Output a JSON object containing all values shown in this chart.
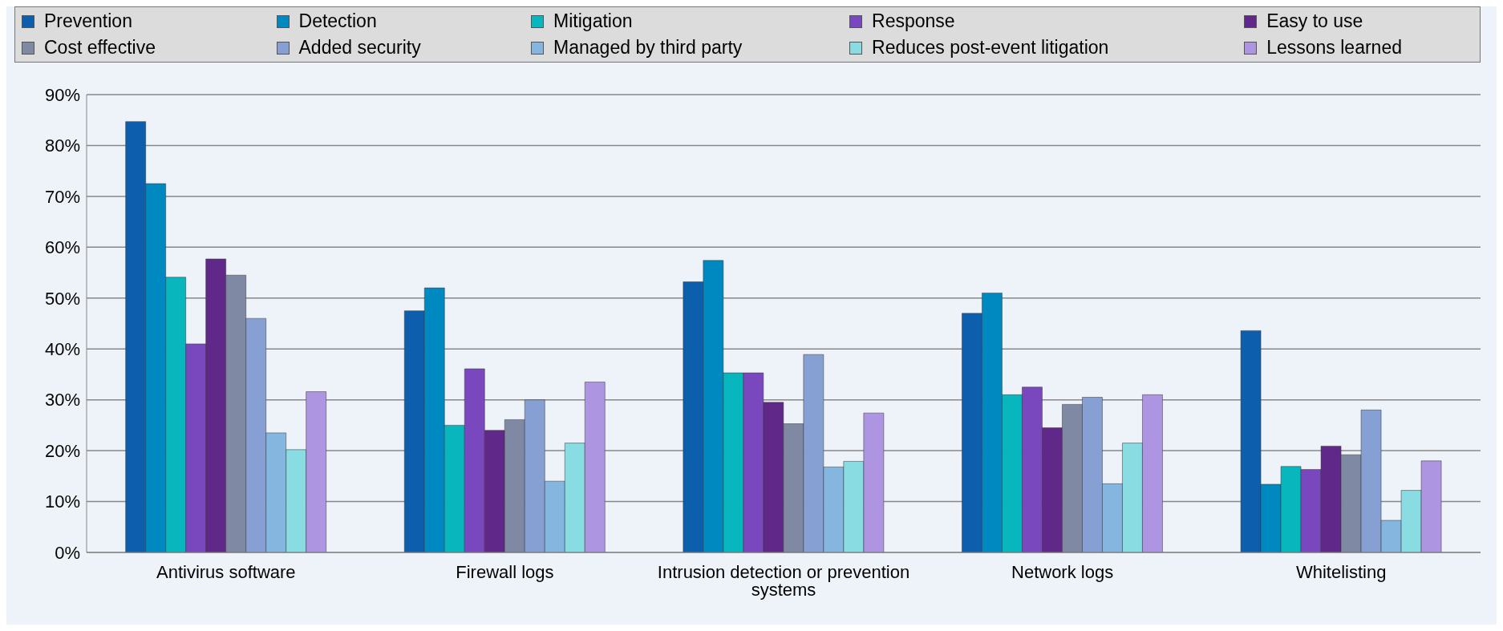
{
  "chart_data": {
    "type": "bar",
    "categories": [
      "Antivirus software",
      "Firewall logs",
      "Intrusion detection or prevention systems",
      "Network logs",
      "Whitelisting"
    ],
    "series": [
      {
        "name": "Prevention",
        "color": "#0d5eac",
        "values": [
          84.7,
          47.5,
          53.2,
          47.0,
          43.6
        ]
      },
      {
        "name": "Detection",
        "color": "#0088c0",
        "values": [
          72.5,
          52.0,
          57.4,
          51.0,
          13.4
        ]
      },
      {
        "name": "Mitigation",
        "color": "#08b6be",
        "values": [
          54.1,
          25.0,
          35.3,
          31.0,
          16.9
        ]
      },
      {
        "name": "Response",
        "color": "#7a48be",
        "values": [
          41.0,
          36.1,
          35.3,
          32.5,
          16.3
        ]
      },
      {
        "name": "Easy to use",
        "color": "#5f2889",
        "values": [
          57.7,
          24.0,
          29.5,
          24.5,
          20.9
        ]
      },
      {
        "name": "Cost effective",
        "color": "#8089a4",
        "values": [
          54.5,
          26.1,
          25.3,
          29.1,
          19.2
        ]
      },
      {
        "name": "Added security",
        "color": "#86a0d4",
        "values": [
          46.0,
          30.0,
          38.9,
          30.5,
          28.0
        ]
      },
      {
        "name": "Managed by third party",
        "color": "#84b6e0",
        "values": [
          23.5,
          14.0,
          16.8,
          13.5,
          6.3
        ]
      },
      {
        "name": "Reduces post-event litigation",
        "color": "#88dce2",
        "values": [
          20.2,
          21.5,
          17.9,
          21.5,
          12.2
        ]
      },
      {
        "name": "Lessons learned",
        "color": "#ad95e2",
        "values": [
          31.6,
          33.5,
          27.4,
          31.0,
          18.0
        ]
      }
    ],
    "ylim": [
      0,
      90
    ],
    "yticks": [
      {
        "value": 0,
        "label": "0%"
      },
      {
        "value": 10,
        "label": "10%"
      },
      {
        "value": 20,
        "label": "20%"
      },
      {
        "value": 30,
        "label": "30%"
      },
      {
        "value": 40,
        "label": "40%"
      },
      {
        "value": 50,
        "label": "50%"
      },
      {
        "value": 60,
        "label": "60%"
      },
      {
        "value": 70,
        "label": "70%"
      },
      {
        "value": 80,
        "label": "80%"
      },
      {
        "value": 90,
        "label": "90%"
      }
    ],
    "grid": "y",
    "legend": "top"
  }
}
